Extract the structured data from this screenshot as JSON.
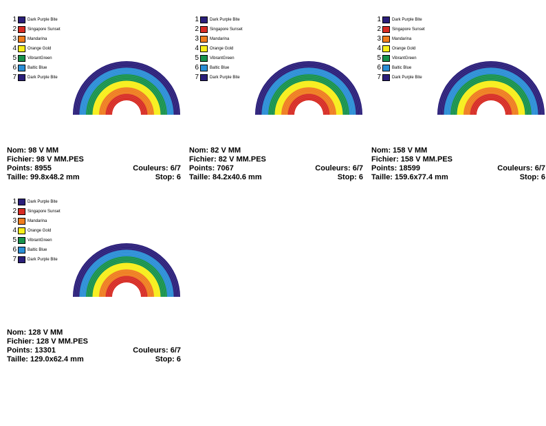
{
  "labels": {
    "nom": "Nom:",
    "fichier": "Fichier:",
    "points": "Points:",
    "taille": "Taille:",
    "couleurs": "Couleurs:",
    "stop": "Stop:"
  },
  "palette": [
    {
      "num": "1",
      "name": "Dark Purple Bite",
      "color": "#2b1f7a"
    },
    {
      "num": "2",
      "name": "Singapore Sunset",
      "color": "#d72c24"
    },
    {
      "num": "3",
      "name": "Mandarina",
      "color": "#ef7d1f"
    },
    {
      "num": "4",
      "name": "Orange Gold",
      "color": "#f7ee1a"
    },
    {
      "num": "5",
      "name": "VibrantGreen",
      "color": "#17924c"
    },
    {
      "num": "6",
      "name": "Baltic Blue",
      "color": "#2a8ed6"
    },
    {
      "num": "7",
      "name": "Dark Purple Bite",
      "color": "#2b1f7a"
    }
  ],
  "designs": [
    {
      "nom": "98 V MM",
      "fichier": "98 V MM.PES",
      "points": "8955",
      "couleurs": "6/7",
      "taille": "99.8x48.2 mm",
      "stop": "6"
    },
    {
      "nom": "82 V MM",
      "fichier": "82 V MM.PES",
      "points": "7067",
      "couleurs": "6/7",
      "taille": "84.2x40.6 mm",
      "stop": "6"
    },
    {
      "nom": "158 V MM",
      "fichier": "158 V MM.PES",
      "points": "18599",
      "couleurs": "6/7",
      "taille": "159.6x77.4 mm",
      "stop": "6"
    },
    {
      "nom": "128 V MM",
      "fichier": "128 V MM.PES",
      "points": "13301",
      "couleurs": "6/7",
      "taille": "129.0x62.4 mm",
      "stop": "6"
    }
  ]
}
